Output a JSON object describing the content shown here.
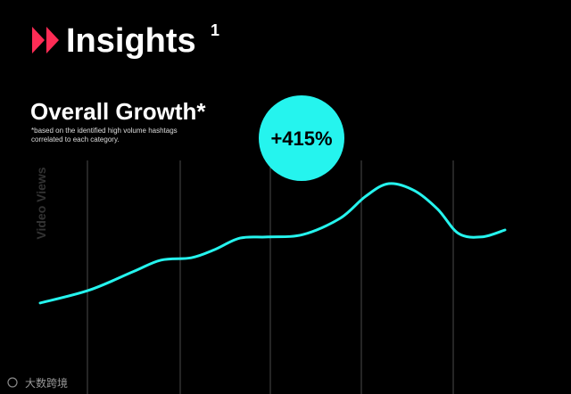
{
  "chart_data": {
    "type": "line",
    "title": "Insights",
    "title_superscript": "1",
    "subtitle": "Overall Growth*",
    "note_lines": [
      "*based on the identified high volume hashtags",
      "correlated to each category."
    ],
    "badge": "+415%",
    "y_label": "Video Views",
    "watermark": "大数跨境",
    "x": [
      0,
      10.5,
      20,
      26,
      32.5,
      37.5,
      43,
      49,
      56.5,
      64.5,
      70,
      75,
      80.5,
      85.5,
      90,
      95,
      100
    ],
    "series": [
      {
        "name": "Video Views",
        "color": "#25F4EE",
        "values": [
          38.5,
          44,
          52,
          57,
          58,
          61.5,
          66.5,
          67,
          68,
          75,
          84.5,
          90,
          87,
          79,
          68.5,
          67,
          70
        ]
      }
    ],
    "xlim": [
      0,
      100
    ],
    "ylim": [
      0,
      100
    ],
    "accent_color": "#FE2C55"
  }
}
